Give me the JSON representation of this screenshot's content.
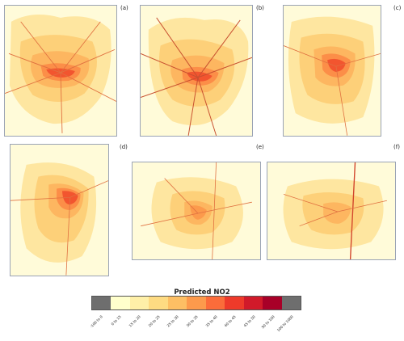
{
  "panels": [
    {
      "id": "a",
      "label": "(a)"
    },
    {
      "id": "b",
      "label": "(b)"
    },
    {
      "id": "c",
      "label": "(c)"
    },
    {
      "id": "d",
      "label": "(d)"
    },
    {
      "id": "e",
      "label": "(e)"
    },
    {
      "id": "f",
      "label": "(f)"
    }
  ],
  "legend": {
    "title": "Predicted NO2",
    "classes": [
      {
        "label": "-100 to 0",
        "color": "#6e6e6e"
      },
      {
        "label": "0 to 15",
        "color": "#ffffcc"
      },
      {
        "label": "15 to 20",
        "color": "#fff0a8"
      },
      {
        "label": "20 to 25",
        "color": "#fedb82"
      },
      {
        "label": "25 to 30",
        "color": "#fdbf64"
      },
      {
        "label": "30 to 35",
        "color": "#fc9a4c"
      },
      {
        "label": "35 to 40",
        "color": "#fb6c3a"
      },
      {
        "label": "40 to 45",
        "color": "#ee3a2a"
      },
      {
        "label": "45 to 50",
        "color": "#d11a2a"
      },
      {
        "label": "50 to 100",
        "color": "#a80028"
      },
      {
        "label": "100 to 1000",
        "color": "#6e6e6e"
      }
    ]
  }
}
